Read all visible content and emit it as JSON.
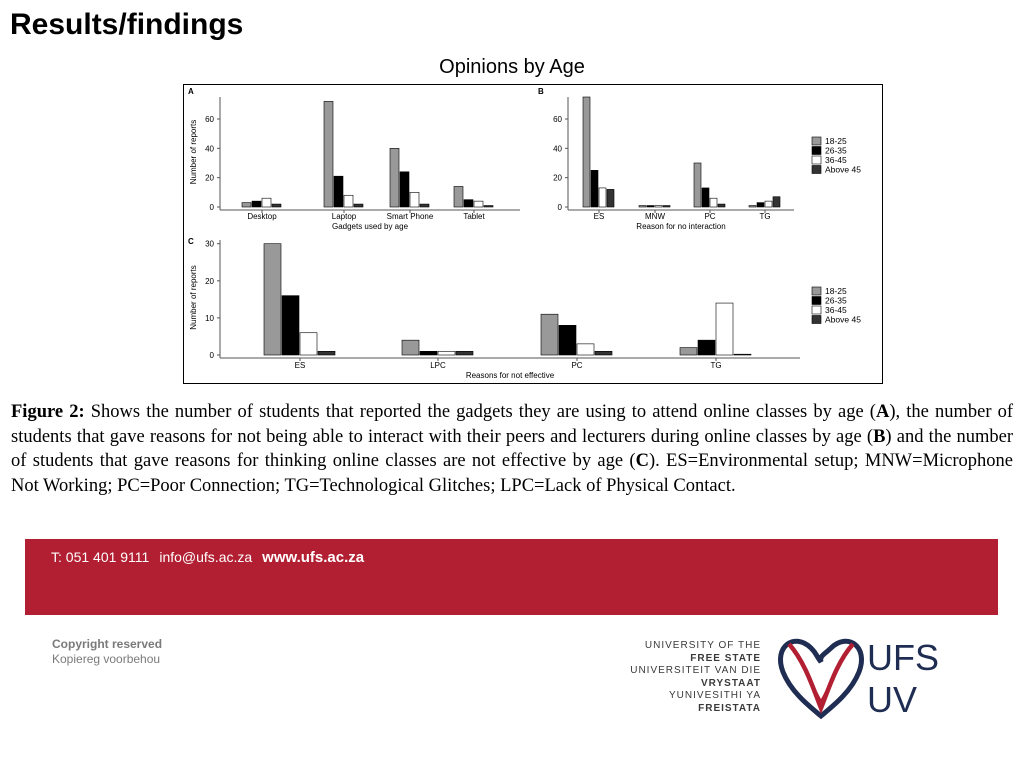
{
  "slide_title": "Results/findings",
  "figure_subtitle": "Opinions by Age",
  "caption": {
    "label": "Figure 2:",
    "t1": " Shows the number of students that reported the gadgets they are using to attend online classes by age (",
    "A": "A",
    "t2": "), the number of students that gave reasons for not being able to interact with their peers and lecturers during online classes by age (",
    "B": "B",
    "t3": ") and the number of students that gave reasons for thinking online classes are not effective by age (",
    "C": "C",
    "t4": "). ES=Environmental setup; MNW=Microphone Not Working; PC=Poor Connection; TG=Technological Glitches; LPC=Lack of Physical Contact."
  },
  "footer": {
    "phone": "T: 051 401 9111",
    "email": "info@ufs.ac.za",
    "website": "www.ufs.ac.za",
    "copyright_1": "Copyright reserved",
    "copyright_2": "Kopiereg voorbehou",
    "uni_lines": [
      "UNIVERSITY OF THE",
      "FREE STATE",
      "UNIVERSITEIT VAN DIE",
      "VRYSTAAT",
      "YUNIVESITHI YA",
      "FREISTATA"
    ],
    "logo_text_1": "UFS",
    "logo_text_2": "UV",
    "brand_color": "#b31f32",
    "logo_navy": "#1f2d52"
  },
  "series_colors": {
    "18-25": "#999999",
    "26-35": "#000000",
    "36-45": "#ffffff",
    "Above 45": "#333333"
  },
  "chart_data": [
    {
      "panel": "A",
      "type": "bar",
      "xlabel": "Gadgets used by age",
      "ylabel": "Number of reports",
      "ylim": [
        0,
        75
      ],
      "yticks": [
        0,
        20,
        40,
        60
      ],
      "categories": [
        "Desktop",
        "Laptop",
        "Smart Phone",
        "Tablet"
      ],
      "series": [
        {
          "name": "18-25",
          "values": [
            3,
            72,
            40,
            14
          ]
        },
        {
          "name": "26-35",
          "values": [
            4,
            21,
            24,
            5
          ]
        },
        {
          "name": "36-45",
          "values": [
            6,
            8,
            10,
            4
          ]
        },
        {
          "name": "Above 45",
          "values": [
            2,
            2,
            2,
            1
          ]
        }
      ]
    },
    {
      "panel": "B",
      "type": "bar",
      "xlabel": "Reason for no interaction",
      "ylabel": "",
      "ylim": [
        0,
        75
      ],
      "yticks": [
        0,
        20,
        40,
        60
      ],
      "categories": [
        "ES",
        "MNW",
        "PC",
        "TG"
      ],
      "legend": [
        "18-25",
        "26-35",
        "36-45",
        "Above 45"
      ],
      "legend_position": "right",
      "series": [
        {
          "name": "18-25",
          "values": [
            75,
            1,
            30,
            1
          ]
        },
        {
          "name": "26-35",
          "values": [
            25,
            1,
            13,
            3
          ]
        },
        {
          "name": "36-45",
          "values": [
            13,
            1,
            6,
            4
          ]
        },
        {
          "name": "Above 45",
          "values": [
            12,
            1,
            2,
            7
          ]
        }
      ]
    },
    {
      "panel": "C",
      "type": "bar",
      "xlabel": "Reasons for not effective",
      "ylabel": "Number of reports",
      "ylim": [
        0,
        31
      ],
      "yticks": [
        0,
        10,
        20,
        30
      ],
      "categories": [
        "ES",
        "LPC",
        "PC",
        "TG"
      ],
      "legend": [
        "18-25",
        "26-35",
        "36-45",
        "Above 45"
      ],
      "legend_position": "right",
      "series": [
        {
          "name": "18-25",
          "values": [
            30,
            4,
            11,
            2
          ]
        },
        {
          "name": "26-35",
          "values": [
            16,
            1,
            8,
            4
          ]
        },
        {
          "name": "36-45",
          "values": [
            6,
            1,
            3,
            14
          ]
        },
        {
          "name": "Above 45",
          "values": [
            1,
            1,
            1,
            0
          ]
        }
      ]
    }
  ]
}
